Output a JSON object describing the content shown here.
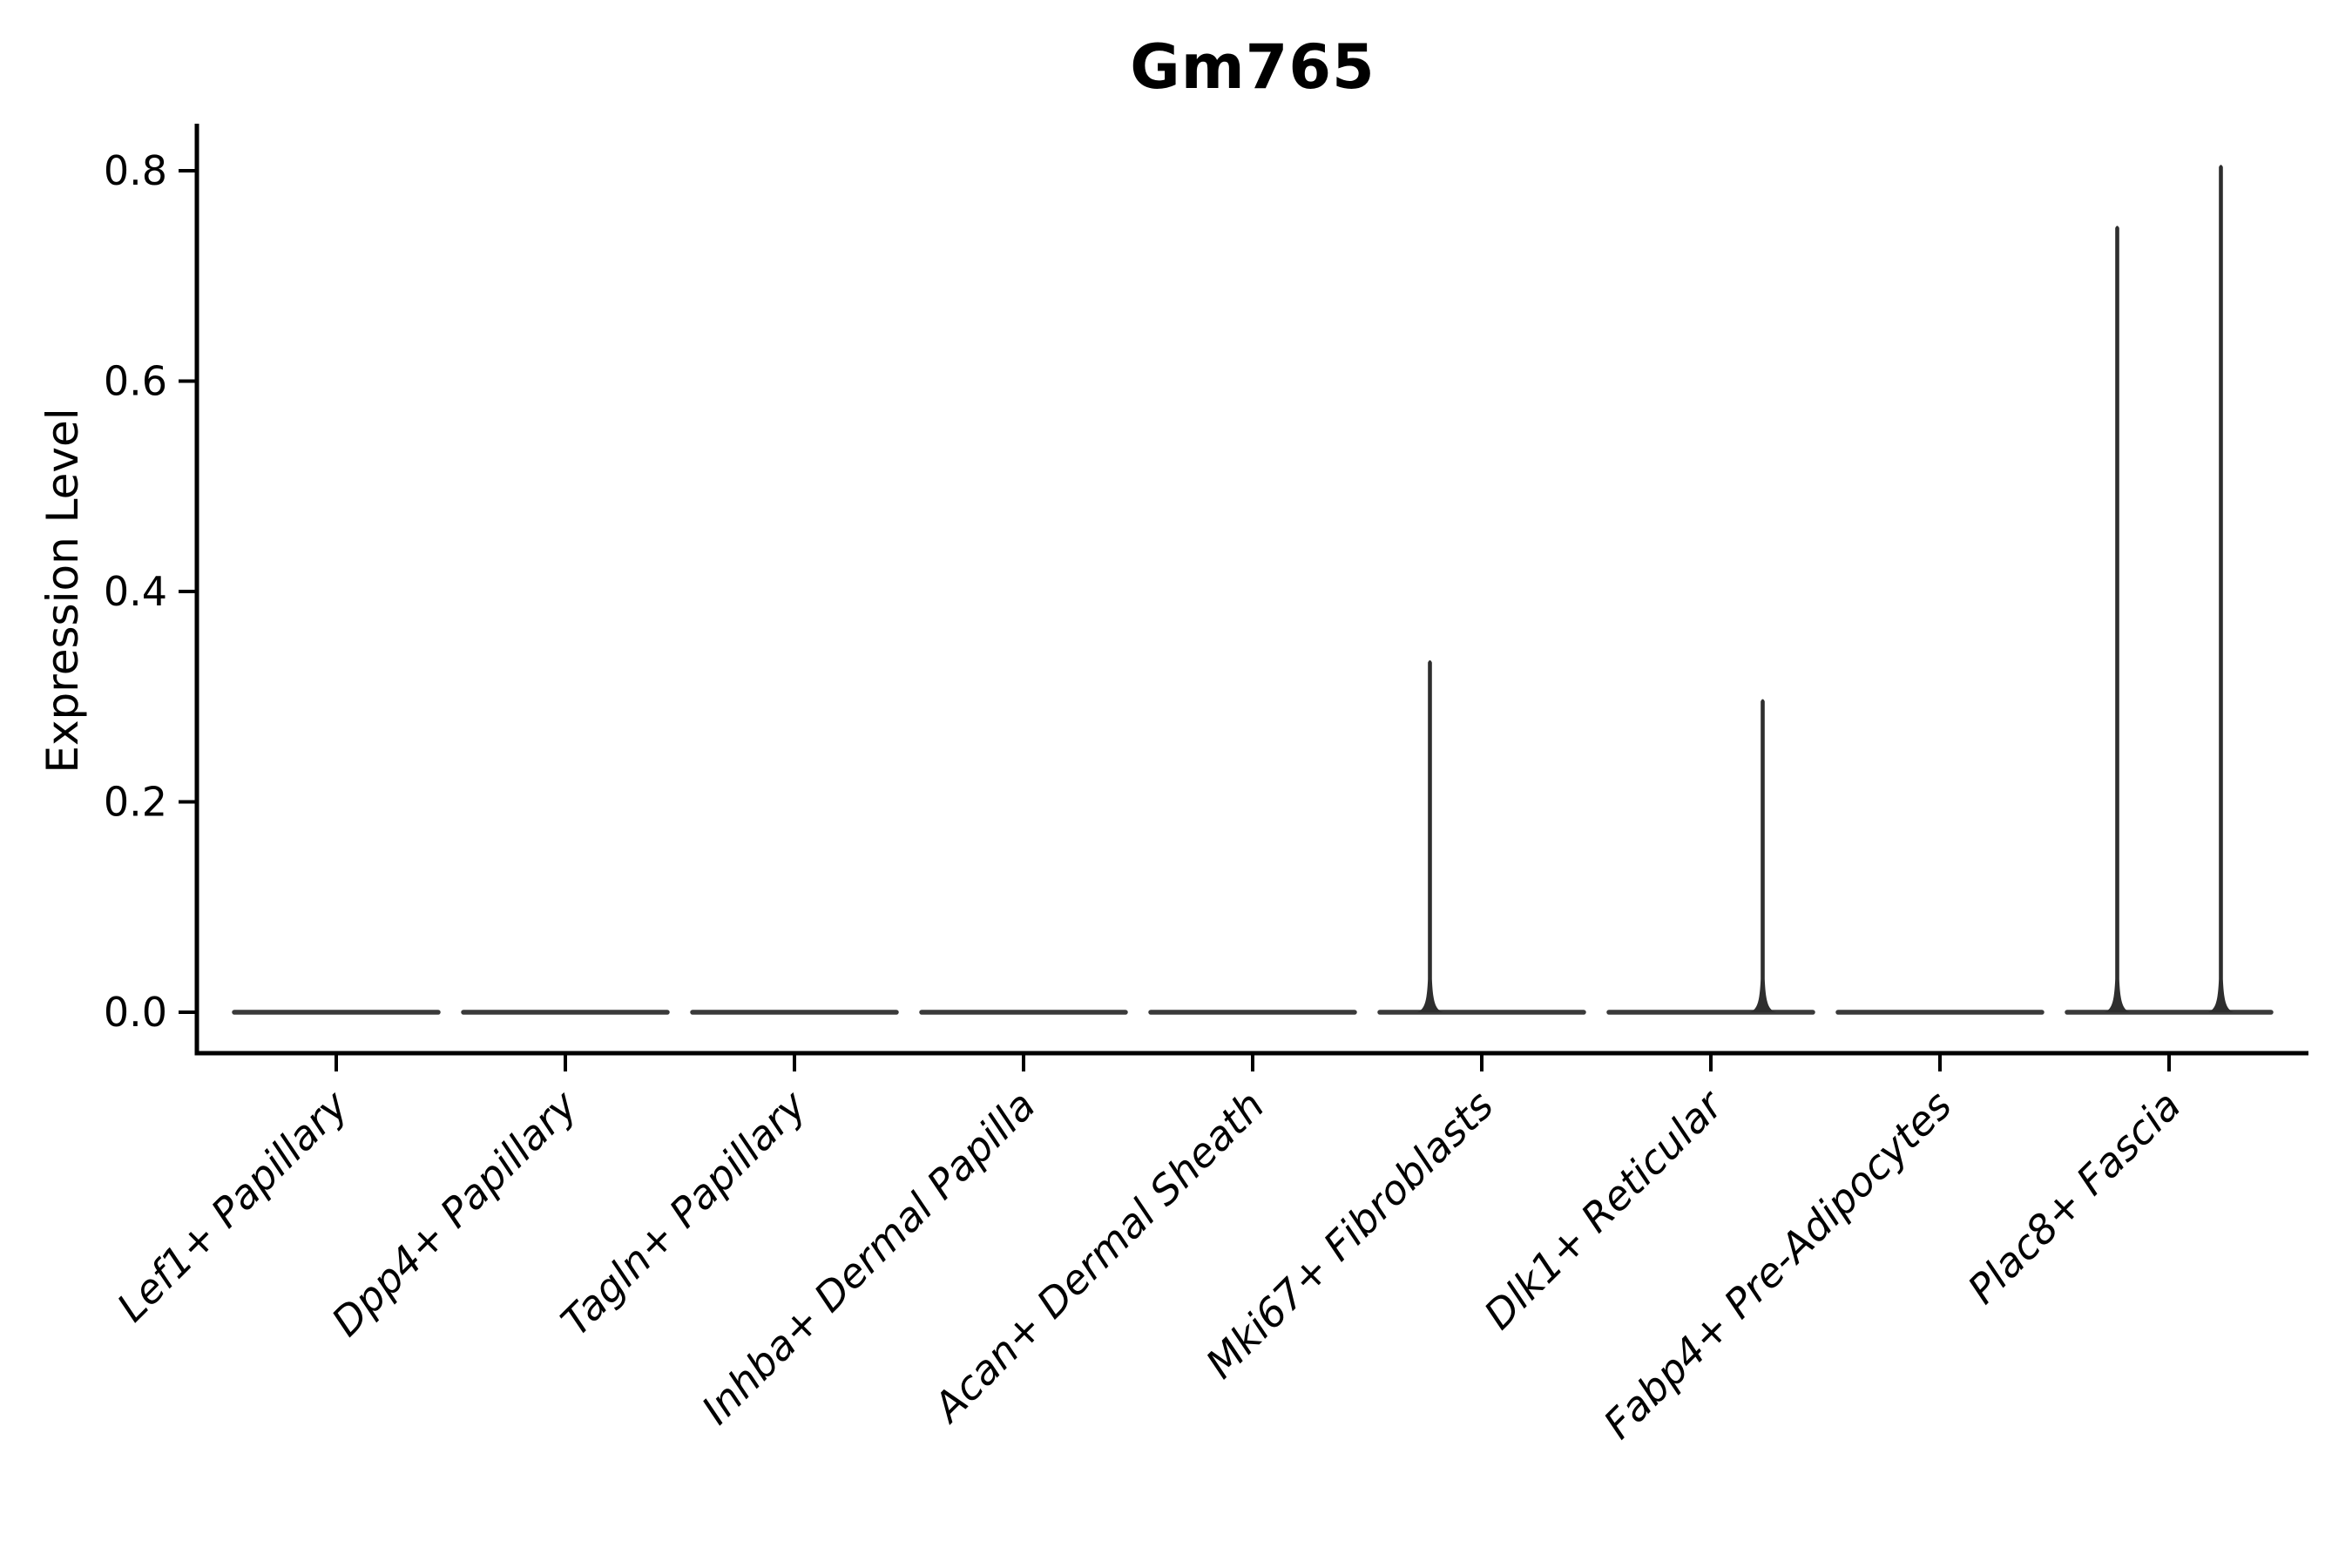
{
  "figure": {
    "title": "Gm765",
    "y_axis_label": "Expression Level"
  },
  "chart_data": {
    "type": "violin",
    "title": "Gm765",
    "xlabel": "",
    "ylabel": "Expression Level",
    "ylim": [
      -0.04,
      0.845
    ],
    "yticks": [
      0.0,
      0.2,
      0.4,
      0.6,
      0.8
    ],
    "ytick_labels": [
      "0.0",
      "0.2",
      "0.4",
      "0.6",
      "0.8"
    ],
    "grid": false,
    "legend": "none",
    "background_color": "#ffffff",
    "colors": {
      "axis": "#000000",
      "text": "#000000",
      "violin_base": "#3a3a3a",
      "violin_spike": "#2e2e2e"
    },
    "description": "Violin plot of Gm765 expression; violins are collapsed flat at 0 for nearly all cells, with thin density spikes up to the few expressing cells (paired half-violins per category, spikes offset left/right of center).",
    "categories": [
      {
        "label": "Lef1+ Papillary",
        "baseline": 0.0,
        "max_expression": 0.0,
        "spikes": []
      },
      {
        "label": "Dpp4+ Papillary",
        "baseline": 0.0,
        "max_expression": 0.0,
        "spikes": []
      },
      {
        "label": "Tagln+ Papillary",
        "baseline": 0.0,
        "max_expression": 0.0,
        "spikes": []
      },
      {
        "label": "Inhba+ Dermal Papilla",
        "baseline": 0.0,
        "max_expression": 0.0,
        "spikes": []
      },
      {
        "label": "Acan+ Dermal Sheath",
        "baseline": 0.0,
        "max_expression": 0.0,
        "spikes": []
      },
      {
        "label": "Mki67+ Fibroblasts",
        "baseline": 0.0,
        "max_expression": 0.335,
        "spikes": [
          {
            "side": "left",
            "value": 0.335
          }
        ]
      },
      {
        "label": "Dlk1+ Reticular",
        "baseline": 0.0,
        "max_expression": 0.298,
        "spikes": [
          {
            "side": "right",
            "value": 0.298
          }
        ]
      },
      {
        "label": "Fabp4+ Pre-Adipocytes",
        "baseline": 0.0,
        "max_expression": 0.0,
        "spikes": []
      },
      {
        "label": "Plac8+ Fascia",
        "baseline": 0.0,
        "max_expression": 0.806,
        "spikes": [
          {
            "side": "left",
            "value": 0.748
          },
          {
            "side": "right",
            "value": 0.806
          }
        ]
      }
    ]
  }
}
